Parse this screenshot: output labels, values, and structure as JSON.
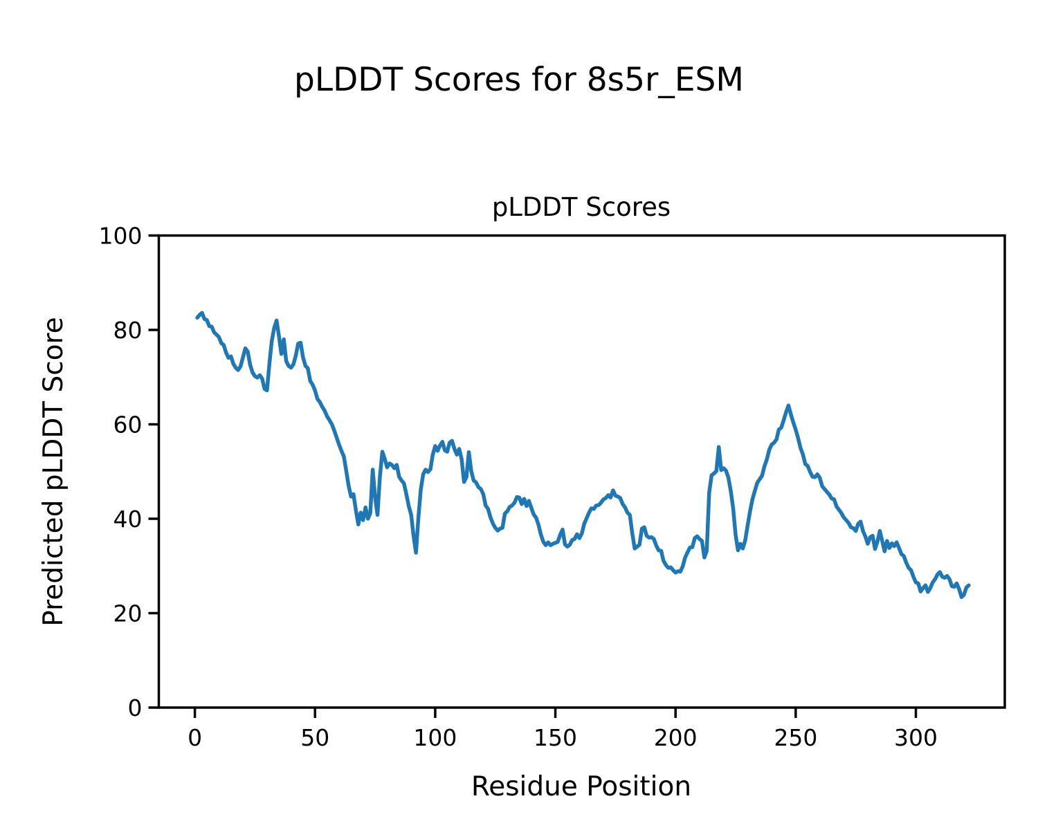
{
  "figure": {
    "suptitle": "pLDDT Scores for 8s5r_ESM",
    "background": "#ffffff"
  },
  "chart_data": {
    "type": "line",
    "title": "pLDDT Scores",
    "xlabel": "Residue Position",
    "ylabel": "Predicted pLDDT Score",
    "xlim": [
      -15,
      337
    ],
    "ylim": [
      0,
      100
    ],
    "xticks": [
      0,
      50,
      100,
      150,
      200,
      250,
      300
    ],
    "yticks": [
      0,
      20,
      40,
      60,
      80,
      100
    ],
    "grid": false,
    "legend_position": "none",
    "line_color": "#1f77b4",
    "axis_color": "#000000",
    "series": [
      {
        "name": "pLDDT",
        "points": [
          [
            1,
            82.6
          ],
          [
            2,
            83.2
          ],
          [
            3,
            83.6
          ],
          [
            4,
            82.3
          ],
          [
            5,
            82.1
          ],
          [
            6,
            80.8
          ],
          [
            7,
            80.7
          ],
          [
            8,
            79.5
          ],
          [
            9,
            79.0
          ],
          [
            10,
            78.5
          ],
          [
            11,
            77.2
          ],
          [
            12,
            76.8
          ],
          [
            13,
            75.2
          ],
          [
            14,
            74.1
          ],
          [
            15,
            74.4
          ],
          [
            16,
            72.8
          ],
          [
            17,
            72.0
          ],
          [
            18,
            71.5
          ],
          [
            19,
            72.3
          ],
          [
            20,
            74.2
          ],
          [
            21,
            76.1
          ],
          [
            22,
            75.4
          ],
          [
            23,
            72.6
          ],
          [
            24,
            71.0
          ],
          [
            25,
            70.2
          ],
          [
            26,
            69.9
          ],
          [
            27,
            70.4
          ],
          [
            28,
            69.7
          ],
          [
            29,
            67.5
          ],
          [
            30,
            67.2
          ],
          [
            31,
            72.8
          ],
          [
            32,
            77.6
          ],
          [
            33,
            80.4
          ],
          [
            34,
            82.0
          ],
          [
            35,
            78.6
          ],
          [
            36,
            74.9
          ],
          [
            37,
            78.0
          ],
          [
            38,
            73.4
          ],
          [
            39,
            72.4
          ],
          [
            40,
            72.0
          ],
          [
            41,
            72.7
          ],
          [
            42,
            74.6
          ],
          [
            43,
            77.1
          ],
          [
            44,
            77.3
          ],
          [
            45,
            74.2
          ],
          [
            46,
            72.4
          ],
          [
            47,
            71.9
          ],
          [
            48,
            69.2
          ],
          [
            49,
            68.4
          ],
          [
            50,
            67.2
          ],
          [
            51,
            65.4
          ],
          [
            52,
            64.7
          ],
          [
            53,
            63.7
          ],
          [
            54,
            62.9
          ],
          [
            55,
            61.7
          ],
          [
            56,
            60.9
          ],
          [
            57,
            60.0
          ],
          [
            58,
            58.7
          ],
          [
            59,
            57.2
          ],
          [
            60,
            55.7
          ],
          [
            61,
            54.4
          ],
          [
            62,
            53.2
          ],
          [
            63,
            50.1
          ],
          [
            64,
            46.9
          ],
          [
            65,
            44.7
          ],
          [
            66,
            45.2
          ],
          [
            67,
            41.8
          ],
          [
            68,
            38.8
          ],
          [
            69,
            41.3
          ],
          [
            70,
            39.7
          ],
          [
            71,
            42.4
          ],
          [
            72,
            40.0
          ],
          [
            73,
            41.2
          ],
          [
            74,
            50.4
          ],
          [
            75,
            44.5
          ],
          [
            76,
            40.8
          ],
          [
            77,
            48.9
          ],
          [
            78,
            54.2
          ],
          [
            79,
            52.7
          ],
          [
            80,
            50.9
          ],
          [
            81,
            51.7
          ],
          [
            82,
            51.4
          ],
          [
            83,
            50.7
          ],
          [
            84,
            51.4
          ],
          [
            85,
            48.9
          ],
          [
            86,
            48.1
          ],
          [
            87,
            47.5
          ],
          [
            88,
            45.2
          ],
          [
            89,
            42.7
          ],
          [
            90,
            40.8
          ],
          [
            91,
            36.4
          ],
          [
            92,
            32.8
          ],
          [
            93,
            40.2
          ],
          [
            94,
            46.2
          ],
          [
            95,
            49.4
          ],
          [
            96,
            50.4
          ],
          [
            97,
            49.9
          ],
          [
            98,
            50.5
          ],
          [
            99,
            53.6
          ],
          [
            100,
            55.4
          ],
          [
            101,
            54.4
          ],
          [
            102,
            55.5
          ],
          [
            103,
            56.3
          ],
          [
            104,
            54.5
          ],
          [
            105,
            54.2
          ],
          [
            106,
            56.1
          ],
          [
            107,
            56.5
          ],
          [
            108,
            54.8
          ],
          [
            109,
            53.6
          ],
          [
            110,
            54.8
          ],
          [
            111,
            52.6
          ],
          [
            112,
            47.8
          ],
          [
            113,
            48.8
          ],
          [
            114,
            54.1
          ],
          [
            115,
            50.1
          ],
          [
            116,
            48.1
          ],
          [
            117,
            47.7
          ],
          [
            118,
            46.7
          ],
          [
            119,
            46.3
          ],
          [
            120,
            45.2
          ],
          [
            121,
            42.8
          ],
          [
            122,
            42.1
          ],
          [
            123,
            40.3
          ],
          [
            124,
            39.0
          ],
          [
            125,
            38.1
          ],
          [
            126,
            37.5
          ],
          [
            127,
            37.9
          ],
          [
            128,
            38.1
          ],
          [
            129,
            41.1
          ],
          [
            130,
            41.6
          ],
          [
            131,
            42.5
          ],
          [
            132,
            42.8
          ],
          [
            133,
            43.4
          ],
          [
            134,
            44.6
          ],
          [
            135,
            44.5
          ],
          [
            136,
            43.1
          ],
          [
            137,
            44.2
          ],
          [
            138,
            42.7
          ],
          [
            139,
            43.8
          ],
          [
            140,
            42.3
          ],
          [
            141,
            40.9
          ],
          [
            142,
            40.2
          ],
          [
            143,
            38.7
          ],
          [
            144,
            36.6
          ],
          [
            145,
            35.1
          ],
          [
            146,
            34.4
          ],
          [
            147,
            35.0
          ],
          [
            148,
            34.4
          ],
          [
            149,
            34.7
          ],
          [
            150,
            34.9
          ],
          [
            151,
            35.1
          ],
          [
            152,
            36.6
          ],
          [
            153,
            37.7
          ],
          [
            154,
            34.6
          ],
          [
            155,
            34.1
          ],
          [
            156,
            34.5
          ],
          [
            157,
            35.5
          ],
          [
            158,
            35.7
          ],
          [
            159,
            36.7
          ],
          [
            160,
            35.9
          ],
          [
            161,
            36.9
          ],
          [
            162,
            38.9
          ],
          [
            163,
            40.1
          ],
          [
            164,
            41.3
          ],
          [
            165,
            42.2
          ],
          [
            166,
            42.1
          ],
          [
            167,
            42.8
          ],
          [
            168,
            42.9
          ],
          [
            169,
            43.4
          ],
          [
            170,
            44.1
          ],
          [
            171,
            44.4
          ],
          [
            172,
            45.0
          ],
          [
            173,
            44.5
          ],
          [
            174,
            46.0
          ],
          [
            175,
            44.9
          ],
          [
            176,
            44.7
          ],
          [
            177,
            44.4
          ],
          [
            178,
            43.1
          ],
          [
            179,
            42.4
          ],
          [
            180,
            41.3
          ],
          [
            181,
            40.8
          ],
          [
            182,
            36.9
          ],
          [
            183,
            33.7
          ],
          [
            184,
            34.1
          ],
          [
            185,
            34.5
          ],
          [
            186,
            37.9
          ],
          [
            187,
            38.2
          ],
          [
            188,
            36.4
          ],
          [
            189,
            36.0
          ],
          [
            190,
            36.1
          ],
          [
            191,
            35.7
          ],
          [
            192,
            34.3
          ],
          [
            193,
            33.3
          ],
          [
            194,
            33.2
          ],
          [
            195,
            31.1
          ],
          [
            196,
            30.2
          ],
          [
            197,
            29.6
          ],
          [
            198,
            29.7
          ],
          [
            199,
            29.1
          ],
          [
            200,
            28.6
          ],
          [
            201,
            28.9
          ],
          [
            202,
            28.8
          ],
          [
            203,
            29.9
          ],
          [
            204,
            31.8
          ],
          [
            205,
            32.9
          ],
          [
            206,
            33.9
          ],
          [
            207,
            34.0
          ],
          [
            208,
            35.9
          ],
          [
            209,
            36.3
          ],
          [
            210,
            35.7
          ],
          [
            211,
            35.3
          ],
          [
            212,
            31.8
          ],
          [
            213,
            33.2
          ],
          [
            214,
            45.5
          ],
          [
            215,
            49.2
          ],
          [
            216,
            49.6
          ],
          [
            217,
            50.1
          ],
          [
            218,
            55.2
          ],
          [
            219,
            50.3
          ],
          [
            220,
            50.7
          ],
          [
            221,
            50.2
          ],
          [
            222,
            48.7
          ],
          [
            223,
            45.8
          ],
          [
            224,
            42.2
          ],
          [
            225,
            36.6
          ],
          [
            226,
            33.3
          ],
          [
            227,
            34.7
          ],
          [
            228,
            33.7
          ],
          [
            229,
            35.4
          ],
          [
            230,
            38.6
          ],
          [
            231,
            41.6
          ],
          [
            232,
            44.1
          ],
          [
            233,
            45.9
          ],
          [
            234,
            47.6
          ],
          [
            235,
            48.4
          ],
          [
            236,
            49.1
          ],
          [
            237,
            51.1
          ],
          [
            238,
            52.6
          ],
          [
            239,
            54.6
          ],
          [
            240,
            55.7
          ],
          [
            241,
            56.1
          ],
          [
            242,
            56.8
          ],
          [
            243,
            58.9
          ],
          [
            244,
            59.3
          ],
          [
            245,
            60.9
          ],
          [
            246,
            62.6
          ],
          [
            247,
            64.0
          ],
          [
            248,
            62.1
          ],
          [
            249,
            60.4
          ],
          [
            250,
            58.9
          ],
          [
            251,
            57.1
          ],
          [
            252,
            55.0
          ],
          [
            253,
            53.6
          ],
          [
            254,
            51.6
          ],
          [
            255,
            51.2
          ],
          [
            256,
            49.9
          ],
          [
            257,
            48.9
          ],
          [
            258,
            48.8
          ],
          [
            259,
            49.4
          ],
          [
            260,
            48.7
          ],
          [
            261,
            46.9
          ],
          [
            262,
            46.3
          ],
          [
            263,
            45.7
          ],
          [
            264,
            45.1
          ],
          [
            265,
            44.3
          ],
          [
            266,
            44.1
          ],
          [
            267,
            42.6
          ],
          [
            268,
            41.9
          ],
          [
            269,
            41.2
          ],
          [
            270,
            40.3
          ],
          [
            271,
            39.7
          ],
          [
            272,
            39.1
          ],
          [
            273,
            38.2
          ],
          [
            274,
            38.0
          ],
          [
            275,
            37.4
          ],
          [
            276,
            38.9
          ],
          [
            277,
            39.4
          ],
          [
            278,
            37.4
          ],
          [
            279,
            36.2
          ],
          [
            280,
            34.7
          ],
          [
            281,
            36.1
          ],
          [
            282,
            36.4
          ],
          [
            283,
            33.6
          ],
          [
            284,
            35.1
          ],
          [
            285,
            37.4
          ],
          [
            286,
            35.3
          ],
          [
            287,
            33.1
          ],
          [
            288,
            35.3
          ],
          [
            289,
            33.8
          ],
          [
            290,
            34.8
          ],
          [
            291,
            34.2
          ],
          [
            292,
            35.0
          ],
          [
            293,
            33.8
          ],
          [
            294,
            32.5
          ],
          [
            295,
            32.1
          ],
          [
            296,
            30.7
          ],
          [
            297,
            29.6
          ],
          [
            298,
            29.1
          ],
          [
            299,
            27.7
          ],
          [
            300,
            26.5
          ],
          [
            301,
            26.3
          ],
          [
            302,
            24.6
          ],
          [
            303,
            25.3
          ],
          [
            304,
            25.9
          ],
          [
            305,
            24.5
          ],
          [
            306,
            25.3
          ],
          [
            307,
            26.5
          ],
          [
            308,
            27.2
          ],
          [
            309,
            28.2
          ],
          [
            310,
            28.7
          ],
          [
            311,
            27.7
          ],
          [
            312,
            27.5
          ],
          [
            313,
            27.9
          ],
          [
            314,
            27.2
          ],
          [
            315,
            25.7
          ],
          [
            316,
            25.6
          ],
          [
            317,
            26.3
          ],
          [
            318,
            25.1
          ],
          [
            319,
            23.4
          ],
          [
            320,
            23.9
          ],
          [
            321,
            25.4
          ],
          [
            322,
            25.9
          ]
        ]
      }
    ]
  }
}
